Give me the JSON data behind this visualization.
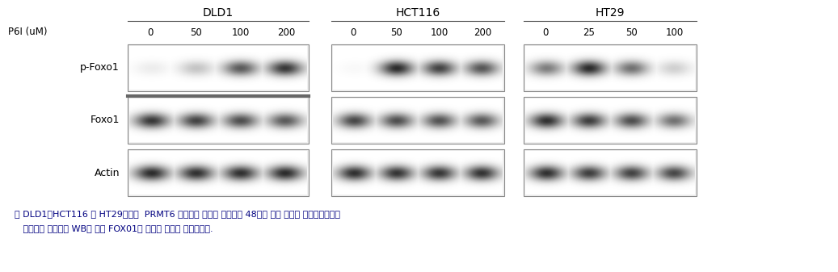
{
  "p6i_label": "P6I (uM)",
  "concentrations": {
    "DLD1": [
      "0",
      "50",
      "100",
      "200"
    ],
    "HCT116": [
      "0",
      "50",
      "100",
      "200"
    ],
    "HT29": [
      "0",
      "25",
      "50",
      "100"
    ]
  },
  "cell_lines": [
    "DLD1",
    "HCT116",
    "HT29"
  ],
  "row_labels": [
    "p-Foxo1",
    "Foxo1",
    "Actin"
  ],
  "caption_line1": "＊ DLD1，HCT116 및 HT29세포에  PRMT6 억제제를 표시된 농도별로 48시간 동안 처리한 후，세포로부터",
  "caption_line2": "   단백질을 추출하여 WB을 통해 FOX01의 인산화 수준을 관찰하였음.",
  "bg_color": "#ffffff",
  "box_edge_color": "#888888",
  "header_line_color": "#555555",
  "font_size_cell_line": 10,
  "font_size_conc": 8.5,
  "font_size_row_label": 9,
  "font_size_caption": 8.0,
  "band_data": {
    "DLD1": {
      "p-Foxo1": [
        0.08,
        0.25,
        0.7,
        0.85
      ],
      "Foxo1": [
        0.85,
        0.8,
        0.75,
        0.7
      ],
      "Actin": [
        0.9,
        0.88,
        0.88,
        0.9
      ]
    },
    "HCT116": {
      "p-Foxo1": [
        0.03,
        0.9,
        0.8,
        0.72
      ],
      "Foxo1": [
        0.78,
        0.75,
        0.73,
        0.7
      ],
      "Actin": [
        0.88,
        0.86,
        0.85,
        0.87
      ]
    },
    "HT29": {
      "p-Foxo1": [
        0.55,
        0.9,
        0.6,
        0.2
      ],
      "Foxo1": [
        0.88,
        0.82,
        0.75,
        0.6
      ],
      "Actin": [
        0.88,
        0.82,
        0.8,
        0.78
      ]
    }
  }
}
